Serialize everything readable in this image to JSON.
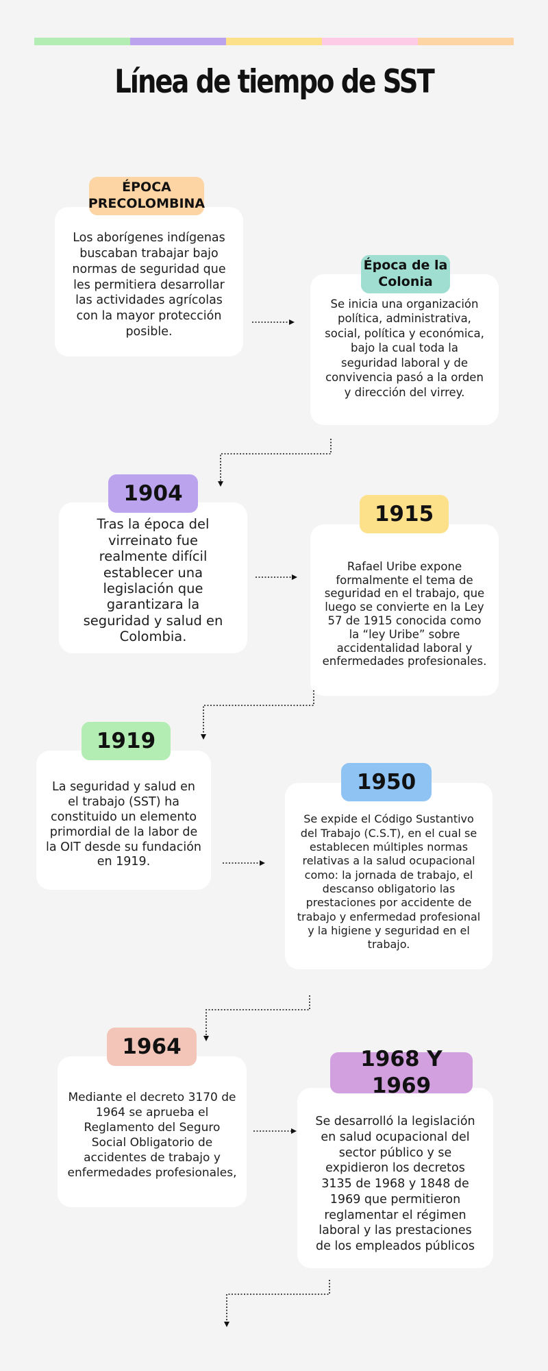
{
  "title": "Línea de tiempo de SST",
  "colors": {
    "green": "#b4edb4",
    "purple": "#bca3ee",
    "yellow": "#fde08a",
    "pink": "#fdcbe5",
    "peach": "#fdd4a4",
    "teal": "#9fded0",
    "blue": "#8ec3f4",
    "salmon": "#f2c5b8",
    "violet": "#d29fdf"
  },
  "events": [
    {
      "label": "ÉPOCA PRECOLOMBINA",
      "text": "Los aborígenes indígenas buscaban trabajar bajo normas de seguridad que les permitiera desarrollar las actividades agrícolas con la mayor protección posible."
    },
    {
      "label": "Época de la Colonia",
      "text": "Se inicia una organización política, administrativa, social, política y económica, bajo la cual toda la seguridad laboral y de convivencia pasó a la orden y dirección del virrey."
    },
    {
      "label": "1904",
      "text": "Tras la época del virreinato fue realmente difícil establecer una legislación que garantizara la seguridad y salud en Colombia."
    },
    {
      "label": "1915",
      "text": "Rafael Uribe expone formalmente el tema de seguridad en el trabajo, que luego se convierte en la Ley 57 de 1915 conocida como la “ley Uribe” sobre accidentalidad laboral y enfermedades profesionales."
    },
    {
      "label": "1919",
      "text": "La seguridad y salud en el trabajo (SST) ha constituido un elemento primordial de la labor de la OIT desde su fundación en 1919."
    },
    {
      "label": "1950",
      "text": "Se expide el Código Sustantivo del Trabajo (C.S.T), en el cual se establecen múltiples normas relativas a la salud ocupacional como: la jornada de trabajo, el descanso obligatorio las prestaciones por accidente de trabajo y enfermedad profesional y la higiene y seguridad en el trabajo."
    },
    {
      "label": "1964",
      "text": "Mediante el decreto 3170 de 1964 se aprueba el Reglamento del Seguro Social Obligatorio de accidentes de trabajo y enfermedades profesionales,"
    },
    {
      "label": "1968 Y 1969",
      "text": "Se desarrolló la legislación en salud ocupacional del sector público y se expidieron los decretos 3135 de 1968 y 1848 de 1969 que permitieron reglamentar el régimen laboral y las prestaciones de los empleados públicos"
    }
  ]
}
